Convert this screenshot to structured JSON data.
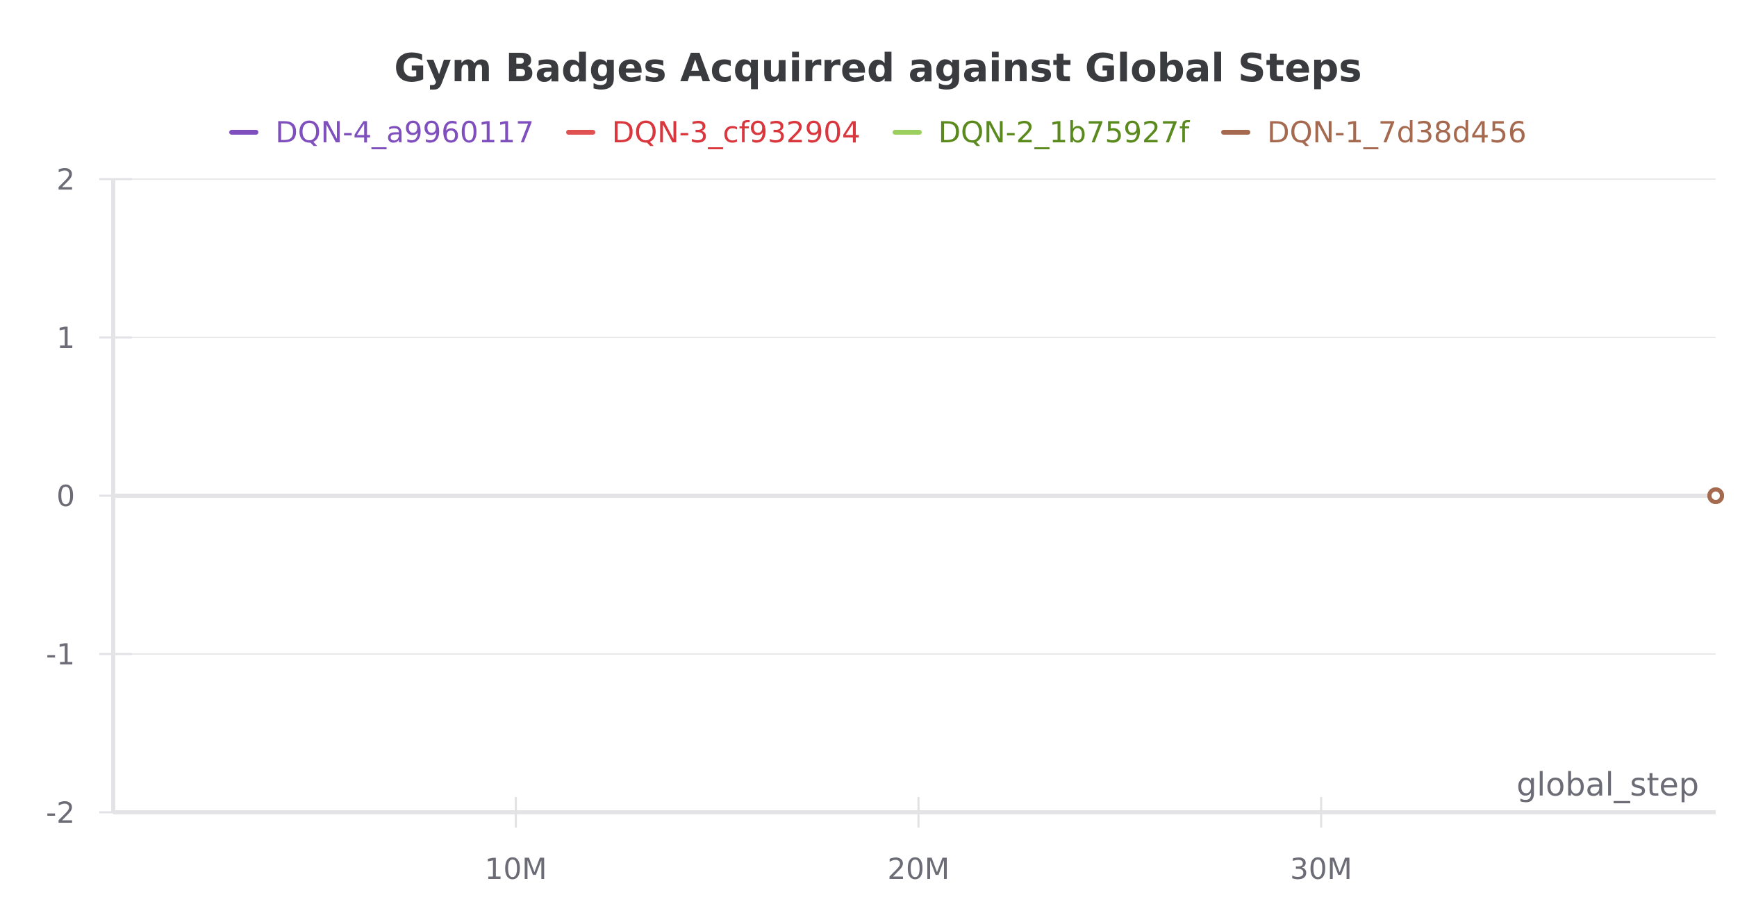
{
  "chart_data": {
    "type": "line",
    "title": "Gym Badges Acquirred against Global Steps",
    "xlabel": "global_step",
    "ylabel": "",
    "ylim": [
      -2,
      2
    ],
    "xlim": [
      0,
      39800000
    ],
    "yticks": [
      2,
      1,
      0,
      -1,
      -2
    ],
    "yticklabels": [
      "2",
      "1",
      "0",
      "-1",
      "-2"
    ],
    "xticks": [
      10000000,
      20000000,
      30000000
    ],
    "xticklabels": [
      "10M",
      "20M",
      "30M"
    ],
    "grid": true,
    "legend_position": "top-center",
    "series": [
      {
        "name": "DQN-4_a9960117",
        "color": "#7e4fbd",
        "text_color": "#7e4fbd",
        "x": [
          0,
          39800000
        ],
        "y": [
          0,
          0
        ]
      },
      {
        "name": "DQN-3_cf932904",
        "color": "#e05252",
        "text_color": "#d9363e",
        "x": [
          0,
          39800000
        ],
        "y": [
          0,
          0
        ]
      },
      {
        "name": "DQN-2_1b75927f",
        "color": "#9ccf5e",
        "text_color": "#5a8a1e",
        "x": [
          0,
          39800000
        ],
        "y": [
          0,
          0
        ]
      },
      {
        "name": "DQN-1_7d38d456",
        "color": "#a5694f",
        "text_color": "#a5694f",
        "x": [
          0,
          39800000
        ],
        "y": [
          0,
          0
        ]
      }
    ]
  }
}
